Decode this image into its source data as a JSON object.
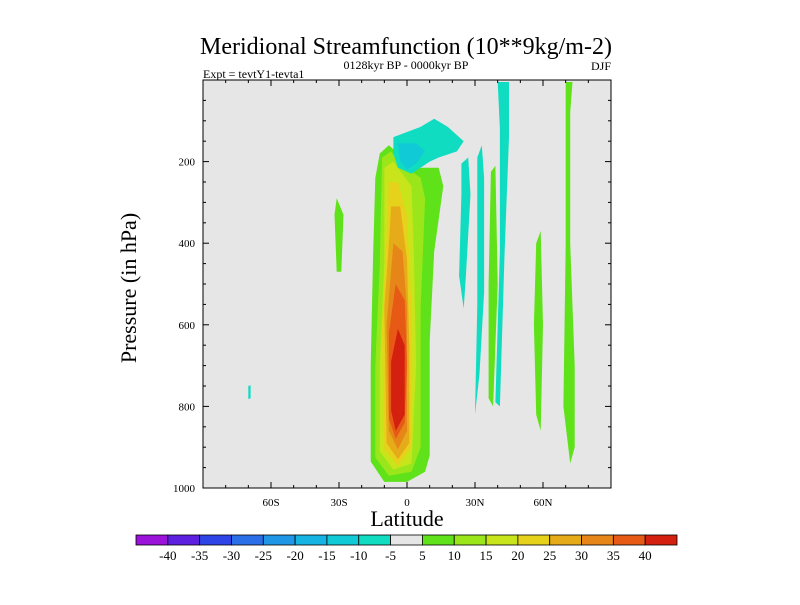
{
  "chart_data": {
    "type": "heatmap",
    "title": "Meridional Streamfunction (10**9kg/m-2)",
    "subtitle": "0128kyr BP - 0000kyr BP",
    "left_label": "Expt = tevtY1-tevta1",
    "right_label": "DJF",
    "xlabel": "Latitude",
    "ylabel": "Pressure (in hPa)",
    "xlim": [
      -90,
      90
    ],
    "ylim": [
      1000,
      0
    ],
    "x_ticks": [
      {
        "value": -60,
        "label": "60S"
      },
      {
        "value": -30,
        "label": "30S"
      },
      {
        "value": 0,
        "label": "0"
      },
      {
        "value": 30,
        "label": "30N"
      },
      {
        "value": 60,
        "label": "60N"
      }
    ],
    "y_ticks": [
      {
        "value": 200,
        "label": "200"
      },
      {
        "value": 400,
        "label": "400"
      },
      {
        "value": 600,
        "label": "600"
      },
      {
        "value": 800,
        "label": "800"
      },
      {
        "value": 1000,
        "label": "1000"
      }
    ],
    "background_color": "#e6e6e6",
    "colorbar": {
      "labels": [
        "-40",
        "-35",
        "-30",
        "-25",
        "-20",
        "-15",
        "-10",
        "-5",
        "5",
        "10",
        "15",
        "20",
        "25",
        "30",
        "35",
        "40"
      ],
      "colors": [
        "#9b12d8",
        "#5d1fe0",
        "#2f44e6",
        "#2a6fe8",
        "#1f96e6",
        "#16b4e2",
        "#10cbd6",
        "#0fdcc0",
        "#e6e6e6",
        "#5fe21a",
        "#9be61a",
        "#c8e41a",
        "#e6d21a",
        "#e6ab19",
        "#e68618",
        "#e65a15",
        "#d4200e"
      ]
    },
    "features": [
      {
        "name": "positive-cell-outer",
        "level": 5,
        "color": "#5fe21a",
        "points": [
          [
            -12,
            180
          ],
          [
            -8,
            160
          ],
          [
            -4,
            180
          ],
          [
            0,
            215
          ],
          [
            14,
            215
          ],
          [
            16,
            260
          ],
          [
            12,
            420
          ],
          [
            10,
            640
          ],
          [
            10,
            920
          ],
          [
            8,
            960
          ],
          [
            0,
            985
          ],
          [
            -10,
            985
          ],
          [
            -16,
            935
          ],
          [
            -16,
            700
          ],
          [
            -15,
            440
          ],
          [
            -14,
            240
          ]
        ]
      },
      {
        "name": "positive-cell-10",
        "level": 10,
        "color": "#9be61a",
        "points": [
          [
            -11,
            190
          ],
          [
            -7,
            175
          ],
          [
            -4,
            200
          ],
          [
            6,
            240
          ],
          [
            8,
            290
          ],
          [
            6,
            560
          ],
          [
            6,
            900
          ],
          [
            2,
            960
          ],
          [
            -8,
            970
          ],
          [
            -14,
            925
          ],
          [
            -14,
            700
          ],
          [
            -12,
            450
          ]
        ]
      },
      {
        "name": "positive-cell-15",
        "level": 15,
        "color": "#c8e41a",
        "points": [
          [
            -10,
            215
          ],
          [
            -6,
            200
          ],
          [
            2,
            260
          ],
          [
            3,
            420
          ],
          [
            4,
            700
          ],
          [
            2,
            940
          ],
          [
            -6,
            955
          ],
          [
            -12,
            910
          ],
          [
            -12,
            700
          ],
          [
            -10,
            450
          ]
        ]
      },
      {
        "name": "positive-cell-20",
        "level": 20,
        "color": "#e6d21a",
        "points": [
          [
            -8,
            250
          ],
          [
            -4,
            250
          ],
          [
            0,
            330
          ],
          [
            2,
            560
          ],
          [
            2,
            900
          ],
          [
            -4,
            945
          ],
          [
            -10,
            905
          ],
          [
            -11,
            620
          ],
          [
            -9,
            380
          ]
        ]
      },
      {
        "name": "positive-cell-25",
        "level": 25,
        "color": "#e6ab19",
        "points": [
          [
            -7,
            310
          ],
          [
            -3,
            310
          ],
          [
            0,
            440
          ],
          [
            1,
            650
          ],
          [
            1,
            890
          ],
          [
            -4,
            930
          ],
          [
            -9,
            890
          ],
          [
            -10,
            560
          ],
          [
            -8,
            400
          ]
        ]
      },
      {
        "name": "positive-cell-30",
        "level": 30,
        "color": "#e68618",
        "points": [
          [
            -6,
            400
          ],
          [
            -2,
            420
          ],
          [
            0,
            560
          ],
          [
            0,
            860
          ],
          [
            -4,
            905
          ],
          [
            -8,
            860
          ],
          [
            -9,
            600
          ]
        ]
      },
      {
        "name": "positive-cell-35",
        "level": 35,
        "color": "#e65a15",
        "points": [
          [
            -5,
            500
          ],
          [
            -1,
            540
          ],
          [
            0,
            700
          ],
          [
            -1,
            840
          ],
          [
            -5,
            880
          ],
          [
            -8,
            830
          ],
          [
            -8,
            620
          ]
        ]
      },
      {
        "name": "positive-cell-40",
        "level": 40,
        "color": "#d4200e",
        "points": [
          [
            -4,
            610
          ],
          [
            -1,
            650
          ],
          [
            -1,
            820
          ],
          [
            -5,
            860
          ],
          [
            -7,
            810
          ],
          [
            -7,
            690
          ]
        ]
      },
      {
        "name": "negative-upper-cell",
        "level": -5,
        "color": "#0fdcc0",
        "points": [
          [
            -6,
            140
          ],
          [
            6,
            115
          ],
          [
            12,
            95
          ],
          [
            18,
            115
          ],
          [
            25,
            150
          ],
          [
            22,
            175
          ],
          [
            14,
            190
          ],
          [
            10,
            200
          ],
          [
            2,
            230
          ],
          [
            -4,
            215
          ],
          [
            -6,
            180
          ]
        ]
      },
      {
        "name": "negative-upper-core",
        "level": -10,
        "color": "#10cbd6",
        "points": [
          [
            -4,
            155
          ],
          [
            4,
            155
          ],
          [
            8,
            175
          ],
          [
            4,
            205
          ],
          [
            0,
            220
          ],
          [
            -3,
            200
          ]
        ]
      },
      {
        "name": "positive-strip-30s",
        "level": 5,
        "color": "#5fe21a",
        "points": [
          [
            -31,
            290
          ],
          [
            -28,
            330
          ],
          [
            -29,
            470
          ],
          [
            -31,
            470
          ],
          [
            -32,
            330
          ]
        ]
      },
      {
        "name": "negative-strip-20n",
        "level": -5,
        "color": "#0fdcc0",
        "points": [
          [
            24,
            205
          ],
          [
            27,
            190
          ],
          [
            28,
            280
          ],
          [
            26,
            480
          ],
          [
            25,
            560
          ],
          [
            23,
            480
          ],
          [
            24,
            280
          ]
        ]
      },
      {
        "name": "negative-strip-30n",
        "level": -5,
        "color": "#0fdcc0",
        "points": [
          [
            31,
            190
          ],
          [
            33,
            160
          ],
          [
            34,
            240
          ],
          [
            34,
            520
          ],
          [
            32,
            720
          ],
          [
            30,
            820
          ],
          [
            31,
            550
          ]
        ]
      },
      {
        "name": "positive-strip-35n",
        "level": 5,
        "color": "#5fe21a",
        "points": [
          [
            37,
            225
          ],
          [
            39,
            210
          ],
          [
            40,
            500
          ],
          [
            38,
            800
          ],
          [
            36,
            780
          ],
          [
            36,
            500
          ]
        ]
      },
      {
        "name": "negative-strip-40n",
        "level": -5,
        "color": "#0fdcc0",
        "points": [
          [
            40,
            5
          ],
          [
            45,
            5
          ],
          [
            45,
            140
          ],
          [
            43,
            430
          ],
          [
            41,
            800
          ],
          [
            39,
            790
          ],
          [
            41,
            420
          ],
          [
            41,
            120
          ]
        ]
      },
      {
        "name": "positive-strip-60n",
        "level": 5,
        "color": "#5fe21a",
        "points": [
          [
            57,
            400
          ],
          [
            59,
            370
          ],
          [
            60,
            600
          ],
          [
            59,
            860
          ],
          [
            57,
            820
          ],
          [
            56,
            600
          ]
        ]
      },
      {
        "name": "positive-strip-70n",
        "level": 5,
        "color": "#5fe21a",
        "points": [
          [
            70,
            5
          ],
          [
            73,
            5
          ],
          [
            72,
            80
          ],
          [
            72,
            400
          ],
          [
            74,
            700
          ],
          [
            74,
            900
          ],
          [
            72,
            940
          ],
          [
            69,
            800
          ],
          [
            70,
            400
          ],
          [
            70,
            100
          ]
        ]
      },
      {
        "name": "negative-speck-65s",
        "level": -5,
        "color": "#0fdcc0",
        "points": [
          [
            -70,
            750
          ],
          [
            -69,
            748
          ],
          [
            -69,
            780
          ],
          [
            -70,
            782
          ]
        ]
      }
    ]
  }
}
